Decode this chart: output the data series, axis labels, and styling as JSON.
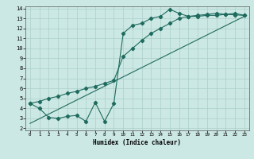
{
  "title": "",
  "xlabel": "Humidex (Indice chaleur)",
  "bg_color": "#cce8e4",
  "grid_color": "#aacfca",
  "line_color": "#1e6b5e",
  "xlim": [
    -0.5,
    23.5
  ],
  "ylim": [
    1.8,
    14.2
  ],
  "xticks": [
    0,
    1,
    2,
    3,
    4,
    5,
    6,
    7,
    8,
    9,
    10,
    11,
    12,
    13,
    14,
    15,
    16,
    17,
    18,
    19,
    20,
    21,
    22,
    23
  ],
  "yticks": [
    2,
    3,
    4,
    5,
    6,
    7,
    8,
    9,
    10,
    11,
    12,
    13,
    14
  ],
  "line1_x": [
    0,
    1,
    2,
    3,
    4,
    5,
    6,
    7,
    8,
    9,
    10,
    11,
    12,
    13,
    14,
    15,
    16,
    17,
    18,
    19,
    20,
    21,
    22,
    23
  ],
  "line1_y": [
    4.5,
    4.0,
    3.1,
    3.0,
    3.2,
    3.3,
    2.7,
    4.6,
    2.7,
    4.5,
    11.5,
    12.3,
    12.5,
    13.0,
    13.2,
    13.9,
    13.5,
    13.2,
    13.2,
    13.3,
    13.3,
    13.4,
    13.5,
    13.3
  ],
  "line2_x": [
    0,
    1,
    2,
    3,
    4,
    5,
    6,
    7,
    8,
    9,
    10,
    11,
    12,
    13,
    14,
    15,
    16,
    17,
    18,
    19,
    20,
    21,
    22,
    23
  ],
  "line2_y": [
    4.5,
    4.7,
    5.0,
    5.2,
    5.5,
    5.7,
    6.0,
    6.2,
    6.5,
    6.8,
    9.2,
    10.0,
    10.8,
    11.5,
    12.0,
    12.5,
    13.0,
    13.2,
    13.3,
    13.4,
    13.5,
    13.4,
    13.35,
    13.3
  ],
  "line3_x": [
    0,
    23
  ],
  "line3_y": [
    2.5,
    13.2
  ]
}
